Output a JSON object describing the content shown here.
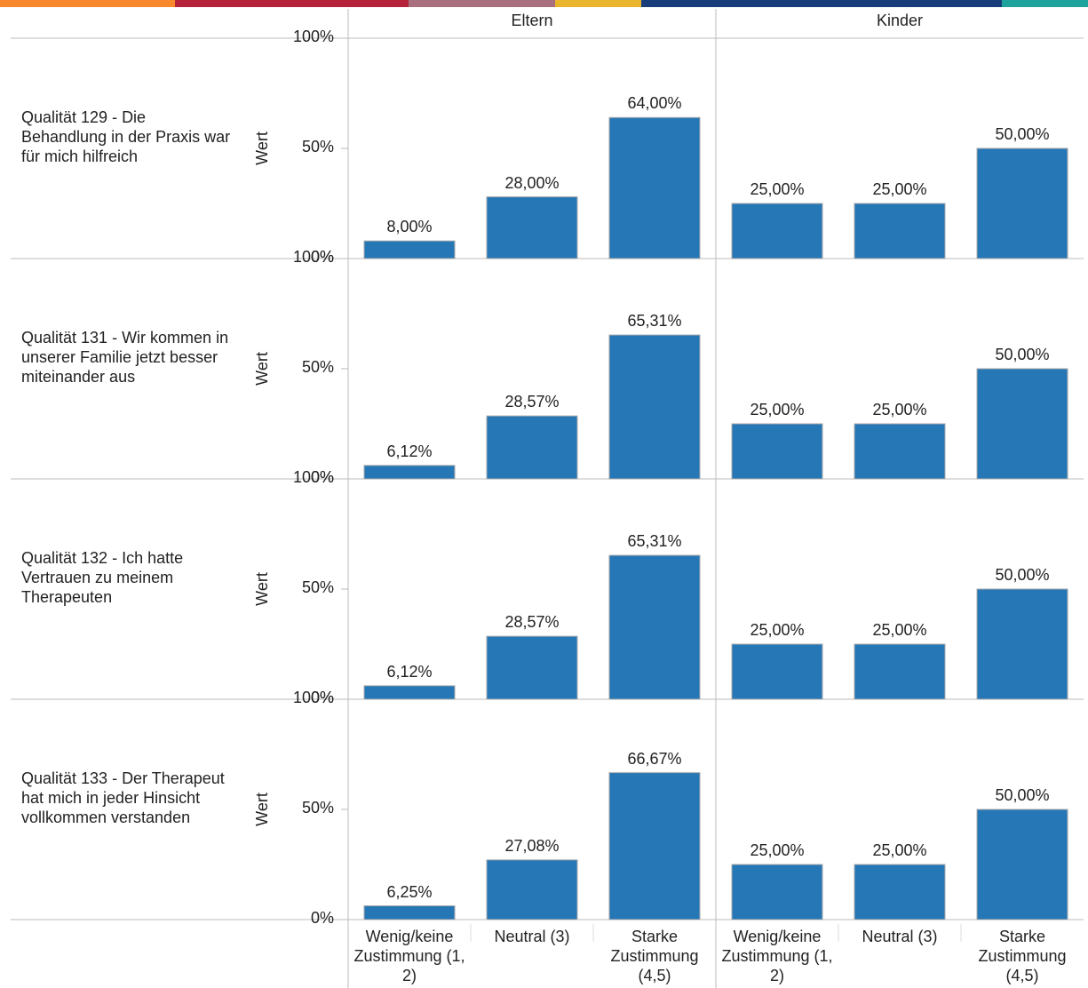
{
  "chart_data": {
    "type": "bar",
    "columns": [
      "Eltern",
      "Kinder"
    ],
    "categories": [
      "Wenig/keine Zustimmung (1, 2)",
      "Neutral (3)",
      "Starke Zustimmung (4,5)"
    ],
    "y_label": "Wert",
    "ylim": [
      0,
      100
    ],
    "yticks": [
      {
        "value": 0,
        "label": "0%"
      },
      {
        "value": 50,
        "label": "50%"
      },
      {
        "value": 100,
        "label": "100%"
      }
    ],
    "color": "#2677b5",
    "rows": [
      {
        "label": "Qualität 129 - Die Behandlung in der Praxis war für mich hilfreich",
        "panels": [
          {
            "values": [
              8,
              28,
              64
            ],
            "value_labels": [
              "8,00%",
              "28,00%",
              "64,00%"
            ]
          },
          {
            "values": [
              25,
              25,
              50
            ],
            "value_labels": [
              "25,00%",
              "25,00%",
              "50,00%"
            ]
          }
        ]
      },
      {
        "label": "Qualität 131 - Wir kommen in unserer Familie jetzt besser miteinander aus",
        "panels": [
          {
            "values": [
              6.12,
              28.57,
              65.31
            ],
            "value_labels": [
              "6,12%",
              "28,57%",
              "65,31%"
            ]
          },
          {
            "values": [
              25,
              25,
              50
            ],
            "value_labels": [
              "25,00%",
              "25,00%",
              "50,00%"
            ]
          }
        ]
      },
      {
        "label": "Qualität 132 - Ich hatte Vertrauen zu meinem Therapeuten",
        "panels": [
          {
            "values": [
              6.12,
              28.57,
              65.31
            ],
            "value_labels": [
              "6,12%",
              "28,57%",
              "65,31%"
            ]
          },
          {
            "values": [
              25,
              25,
              50
            ],
            "value_labels": [
              "25,00%",
              "25,00%",
              "50,00%"
            ]
          }
        ]
      },
      {
        "label": "Qualität 133 - Der Therapeut hat mich in jeder Hinsicht vollkommen verstanden",
        "panels": [
          {
            "values": [
              6.25,
              27.08,
              66.67
            ],
            "value_labels": [
              "6,25%",
              "27,08%",
              "66,67%"
            ]
          },
          {
            "values": [
              25,
              25,
              50
            ],
            "value_labels": [
              "25,00%",
              "25,00%",
              "50,00%"
            ]
          }
        ]
      }
    ]
  }
}
